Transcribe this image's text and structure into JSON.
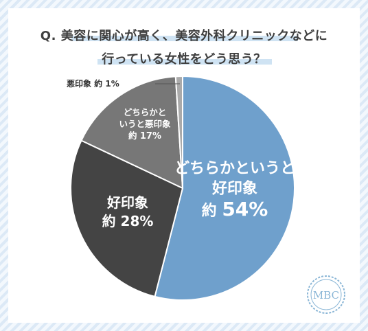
{
  "title": {
    "line1": "Q. 美容に関心が高く、美容外科クリニックなどに",
    "line2": "行っている女性をどう思う？"
  },
  "chart_data": {
    "type": "pie",
    "title": "Q. 美容に関心が高く、美容外科クリニックなどに行っている女性をどう思う？",
    "slices": [
      {
        "label": "どちらかというと好印象",
        "prefix": "約",
        "value": 54,
        "value_text": "54%",
        "color": "#6fa0cc"
      },
      {
        "label": "好印象",
        "prefix": "約",
        "value": 28,
        "value_text": "28%",
        "color": "#444444"
      },
      {
        "label": "どちらかというと悪印象",
        "prefix": "約",
        "value": 17,
        "value_text": "17%",
        "color": "#777777"
      },
      {
        "label": "悪印象",
        "prefix": "約",
        "value": 1,
        "value_text": "1%",
        "color": "#aaaaaa"
      }
    ]
  },
  "logo": {
    "text": "MBC",
    "color": "#8ab6d6"
  }
}
